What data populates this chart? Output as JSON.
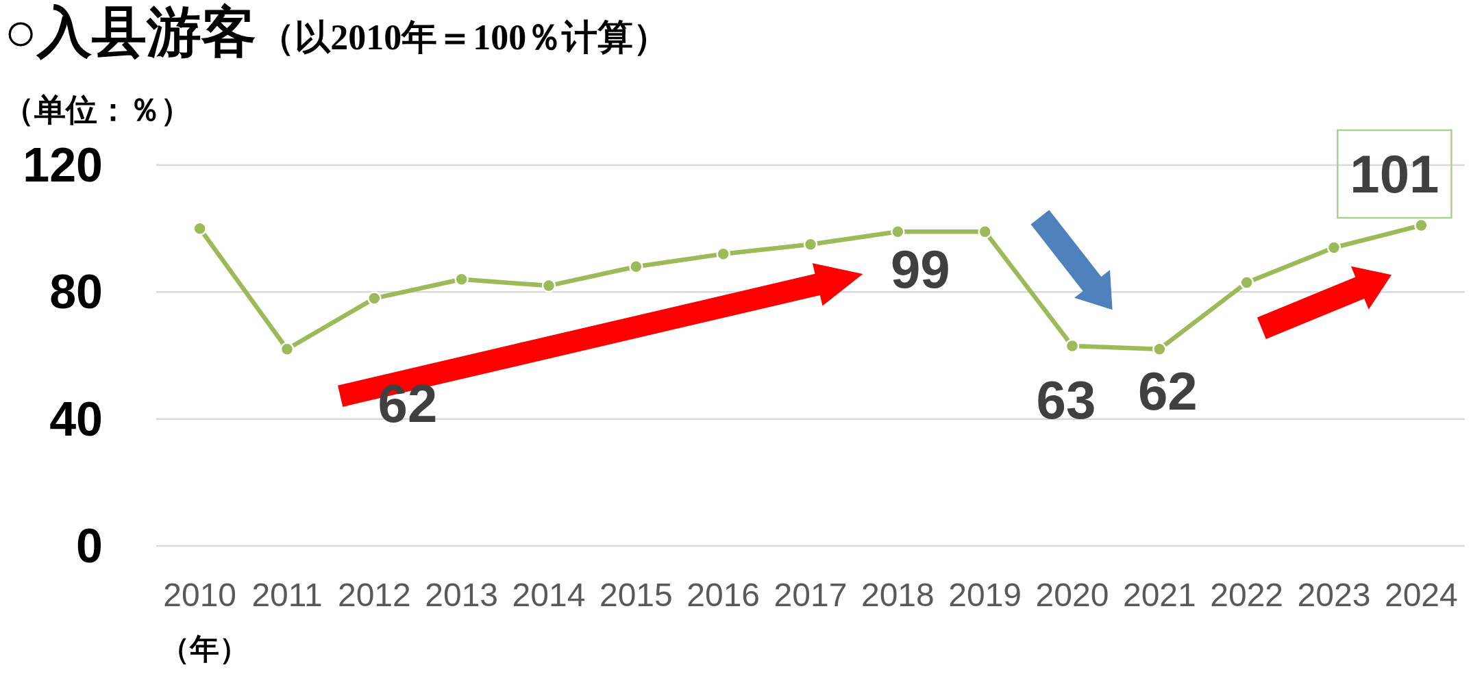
{
  "chart_data": {
    "type": "line",
    "title": "○入县游客",
    "subtitle": "（以2010年＝100％计算）",
    "ylabel": "（单位：％）",
    "xlabel": "（年）",
    "categories": [
      "2010",
      "2011",
      "2012",
      "2013",
      "2014",
      "2015",
      "2016",
      "2017",
      "2018",
      "2019",
      "2020",
      "2021",
      "2022",
      "2023",
      "2024"
    ],
    "values": [
      100,
      62,
      78,
      84,
      82,
      88,
      92,
      95,
      99,
      99,
      63,
      62,
      83,
      94,
      101
    ],
    "color": "#9bbb59",
    "value_labels": [
      null,
      "62",
      null,
      null,
      null,
      null,
      null,
      null,
      "99",
      null,
      "63",
      "62",
      null,
      null,
      "101"
    ],
    "ylim": [
      0,
      120
    ],
    "yticks": [
      0,
      40,
      80,
      120
    ],
    "grid": "y",
    "marker": "circle",
    "line_style": "solid"
  }
}
